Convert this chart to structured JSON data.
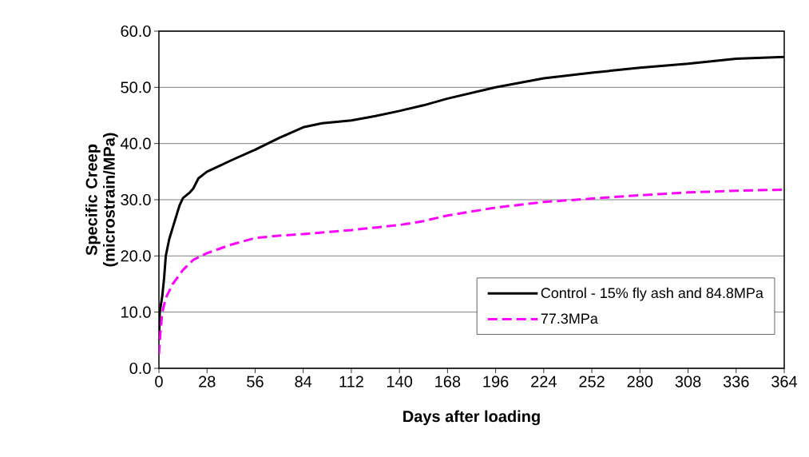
{
  "chart_data": {
    "type": "line",
    "xlabel": "Days after loading",
    "ylabel": "Specific Creep (microstrain/MPa)",
    "xlim": [
      0,
      364
    ],
    "xticks": [
      0,
      28,
      56,
      84,
      112,
      140,
      168,
      196,
      224,
      252,
      280,
      308,
      336,
      364
    ],
    "ylim": [
      0,
      60
    ],
    "yticks": [
      {
        "value": 0,
        "label": "0.0"
      },
      {
        "value": 10,
        "label": "10.0"
      },
      {
        "value": 20,
        "label": "20.0"
      },
      {
        "value": 30,
        "label": "30.0"
      },
      {
        "value": 40,
        "label": "40.0"
      },
      {
        "value": 50,
        "label": "50.0"
      },
      {
        "value": 60,
        "label": "60.0"
      }
    ],
    "grid": "y",
    "legend": "bottom right",
    "marker": "none",
    "series": [
      {
        "name": "Control - 15% fly ash and 84.8MPa",
        "color": "#000000",
        "line_style": "solid",
        "x": [
          0,
          0.5,
          2,
          3,
          4,
          6,
          9,
          12,
          14,
          18,
          20,
          23,
          28,
          35,
          42,
          56,
          70,
          84,
          95,
          112,
          126,
          140,
          154,
          168,
          196,
          224,
          252,
          280,
          308,
          336,
          364
        ],
        "values": [
          5,
          10,
          13,
          16,
          20,
          23,
          26,
          29,
          30.3,
          31.3,
          32,
          33.8,
          35,
          36,
          37,
          38.9,
          41,
          42.9,
          43.6,
          44.1,
          44.9,
          45.8,
          46.8,
          48,
          50,
          51.6,
          52.6,
          53.5,
          54.2,
          55.1,
          55.4
        ]
      },
      {
        "name": "77.3MPa",
        "color": "#ff00ff",
        "line_style": "dashed",
        "x": [
          0,
          1,
          2,
          4,
          8,
          14,
          20,
          28,
          42,
          56,
          70,
          84,
          112,
          140,
          154,
          168,
          196,
          224,
          252,
          280,
          308,
          336,
          364
        ],
        "values": [
          2.5,
          7,
          10,
          12.5,
          15,
          17.5,
          19.3,
          20.5,
          22,
          23.2,
          23.6,
          23.9,
          24.6,
          25.5,
          26.2,
          27.2,
          28.6,
          29.6,
          30.2,
          30.8,
          31.3,
          31.6,
          31.8
        ]
      }
    ]
  }
}
